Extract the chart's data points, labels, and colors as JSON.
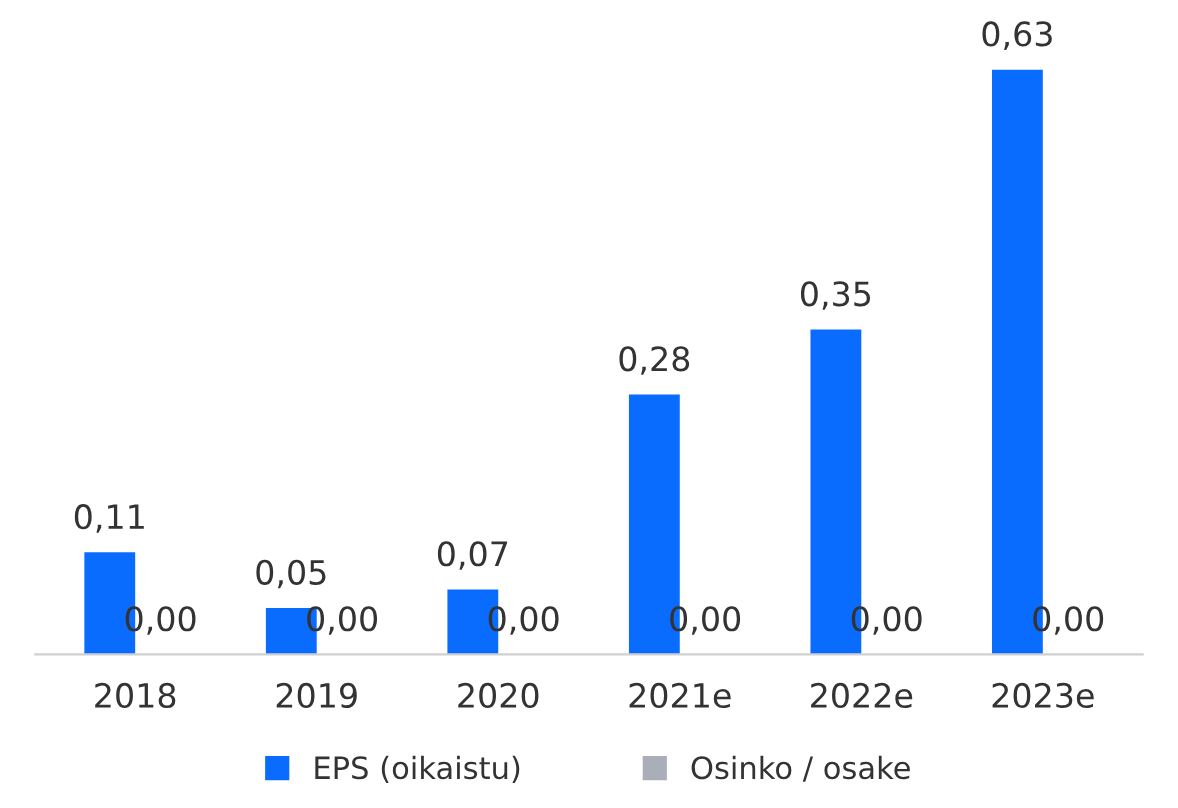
{
  "chart_data": {
    "type": "bar",
    "categories": [
      "2018",
      "2019",
      "2020",
      "2021e",
      "2022e",
      "2023e"
    ],
    "series": [
      {
        "name": "EPS (oikaistu)",
        "color": "#0a6cff",
        "values": [
          0.11,
          0.05,
          0.07,
          0.28,
          0.35,
          0.63
        ],
        "value_labels": [
          "0,11",
          "0,05",
          "0,07",
          "0,28",
          "0,35",
          "0,63"
        ]
      },
      {
        "name": "Osinko / osake",
        "color": "#a9aeb8",
        "values": [
          0,
          0,
          0,
          0,
          0,
          0
        ],
        "value_labels": [
          "0,00",
          "0,00",
          "0,00",
          "0,00",
          "0,00",
          "0,00"
        ]
      }
    ],
    "legend": "bottom",
    "grid": false
  }
}
